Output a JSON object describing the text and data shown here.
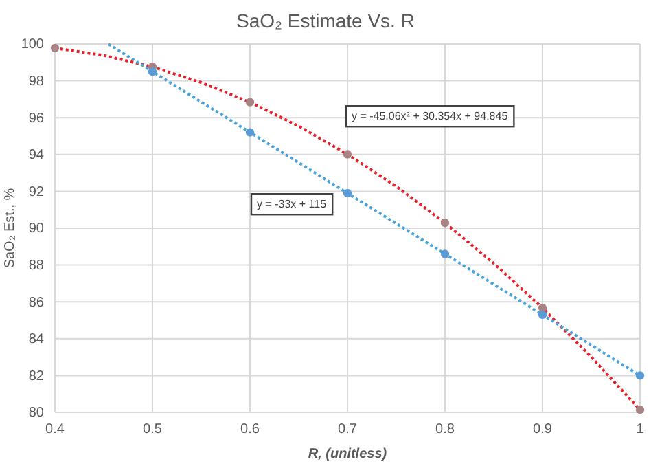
{
  "chart_data": {
    "type": "scatter",
    "title": "SaO₂ Estimate Vs. R",
    "xlabel": "R, (unitless)",
    "ylabel": "SaO₂ Est., %",
    "xlim": [
      0.4,
      1
    ],
    "xticks": [
      0.4,
      0.5,
      0.6,
      0.7,
      0.8,
      0.9,
      1
    ],
    "ylim": [
      80,
      100
    ],
    "yticks": [
      80,
      82,
      84,
      86,
      88,
      90,
      92,
      94,
      96,
      98,
      100
    ],
    "grid": true,
    "marker": "circle",
    "series": [
      {
        "type": "line",
        "line_style": "dotted",
        "marker": "none",
        "color": "#e8202a",
        "x": [
          0.4,
          0.45,
          0.5,
          0.55,
          0.6,
          0.65,
          0.7,
          0.75,
          0.8,
          0.85,
          0.9,
          0.95,
          1.0
        ],
        "values": [
          99.78,
          99.38,
          98.76,
          97.91,
          96.84,
          95.54,
          94.01,
          92.27,
          90.29,
          88.09,
          85.67,
          83.01,
          80.14
        ]
      },
      {
        "type": "line",
        "line_style": "dotted",
        "marker": "none",
        "color": "#4aa3d8",
        "x": [
          0.455,
          1.0
        ],
        "values": [
          99.99,
          82
        ]
      },
      {
        "color": "#a98284",
        "x": [
          0.4,
          0.5,
          0.6,
          0.7,
          0.8,
          0.9,
          1.0
        ],
        "values": [
          99.78,
          98.76,
          96.84,
          94.01,
          90.29,
          85.67,
          80.14
        ]
      },
      {
        "color": "#5b9bd5",
        "x": [
          0.5,
          0.6,
          0.7,
          0.8,
          0.9,
          1.0
        ],
        "values": [
          98.5,
          95.2,
          91.9,
          88.6,
          85.3,
          82
        ]
      }
    ],
    "annotations": [
      "y = -45.06x² + 30.354x + 94.845",
      "y = -33x + 115"
    ]
  }
}
